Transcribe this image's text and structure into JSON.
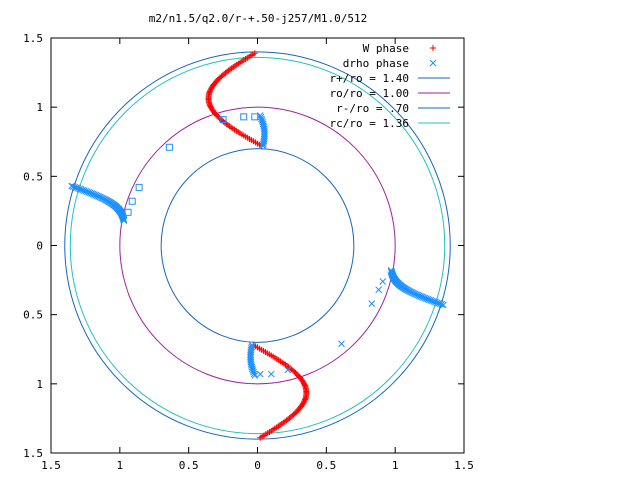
{
  "chart_data": {
    "type": "scatter",
    "title": "m2/n1.5/q2.0/r-+.50-j257/M1.0/512",
    "xlabel": "",
    "ylabel": "",
    "xlim": [
      -1.5,
      1.5
    ],
    "ylim": [
      -1.5,
      1.5
    ],
    "x_tick_labels": [
      "1.5",
      "1",
      "0.5",
      "0",
      "0.5",
      "1",
      "1.5"
    ],
    "y_tick_labels": [
      "1.5",
      "1",
      "0.5",
      "0",
      "0.5",
      "1",
      "1.5"
    ],
    "legend_position": "top-right",
    "grid": false,
    "series": [
      {
        "name": "W phase",
        "marker": "plus",
        "color": "#ff0000",
        "arms": [
          {
            "start": [
              -0.02,
              1.39
            ],
            "end": [
              0.03,
              0.72
            ],
            "swing": -0.36
          },
          {
            "start": [
              0.02,
              -1.39
            ],
            "end": [
              -0.03,
              -0.72
            ],
            "swing": 0.36
          }
        ]
      },
      {
        "name": "drho phase",
        "marker": "x",
        "color": "#1e90ff",
        "arms": [
          {
            "start": [
              -1.35,
              0.43
            ],
            "end": [
              -0.97,
              0.18
            ],
            "swing": 0.1
          },
          {
            "start": [
              1.35,
              -0.43
            ],
            "end": [
              0.97,
              -0.18
            ],
            "swing": -0.1
          },
          {
            "start": [
              0.04,
              0.72
            ],
            "end": [
              0.02,
              0.94
            ],
            "swing": 0.02
          },
          {
            "start": [
              -0.04,
              -0.72
            ],
            "end": [
              -0.02,
              -0.94
            ],
            "swing": -0.02
          }
        ],
        "scatter_upper": [
          [
            -0.1,
            0.93
          ],
          [
            -0.25,
            0.91
          ],
          [
            -0.64,
            0.71
          ],
          [
            -0.86,
            0.42
          ],
          [
            -0.91,
            0.32
          ],
          [
            -0.94,
            0.24
          ],
          [
            -0.02,
            0.93
          ]
        ],
        "scatter_lower": [
          [
            0.1,
            -0.93
          ],
          [
            0.22,
            -0.9
          ],
          [
            0.61,
            -0.71
          ],
          [
            0.83,
            -0.42
          ],
          [
            0.88,
            -0.32
          ],
          [
            0.91,
            -0.26
          ],
          [
            0.02,
            -0.93
          ]
        ]
      },
      {
        "name": "r+/ro = 1.40",
        "type": "circle",
        "radius": 1.4,
        "color": "#1565c0"
      },
      {
        "name": "ro/ro = 1.00",
        "type": "circle",
        "radius": 1.0,
        "color": "#a020a0"
      },
      {
        "name": "r-/ro = .70",
        "type": "circle",
        "radius": 0.7,
        "color": "#1565c0"
      },
      {
        "name": "rc/ro = 1.36",
        "type": "circle",
        "radius": 1.36,
        "color": "#20c0c0"
      }
    ]
  }
}
